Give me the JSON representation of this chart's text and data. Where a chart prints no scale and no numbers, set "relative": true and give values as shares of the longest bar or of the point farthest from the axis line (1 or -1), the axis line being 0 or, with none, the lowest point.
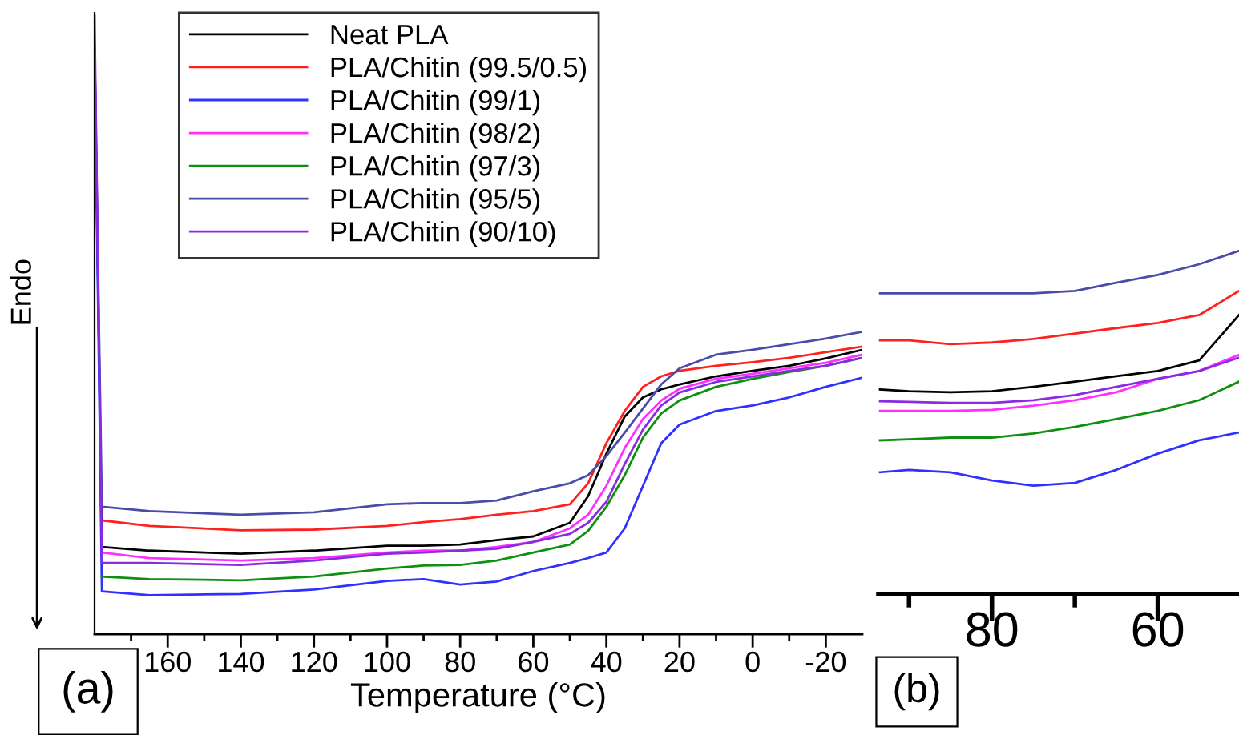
{
  "chart_data": [
    {
      "type": "line",
      "relative": true,
      "xlabel": "Temperature (°C)",
      "ylabel": "Endo",
      "annotations": [
        "(a)"
      ],
      "legend": "top left",
      "tick_labels": "x",
      "grid": false,
      "x": [
        180,
        178,
        165,
        140,
        120,
        100,
        90,
        80,
        70,
        60,
        50,
        45,
        40,
        35,
        30,
        25,
        20,
        10,
        0,
        -10,
        -20,
        -30
      ],
      "xlim": [
        180,
        -30
      ],
      "xticks": [
        {
          "value": 170,
          "label": null
        },
        160,
        {
          "value": 150,
          "label": null
        },
        140,
        {
          "value": 130,
          "label": null
        },
        120,
        {
          "value": 110,
          "label": null
        },
        100,
        {
          "value": 90,
          "label": null
        },
        80,
        {
          "value": 70,
          "label": null
        },
        60,
        {
          "value": 50,
          "label": null
        },
        40,
        {
          "value": 30,
          "label": null
        },
        20,
        {
          "value": 10,
          "label": null
        },
        0,
        {
          "value": -10,
          "label": null
        },
        -20
      ],
      "series": [
        {
          "name": "Neat PLA",
          "color": "#000000",
          "values": [
            0.95,
            0.141,
            0.135,
            0.13,
            0.135,
            0.143,
            0.143,
            0.145,
            0.152,
            0.158,
            0.18,
            0.223,
            0.292,
            0.352,
            0.383,
            0.396,
            0.404,
            0.417,
            0.426,
            0.434,
            0.446,
            0.46
          ]
        },
        {
          "name": "PLA/Chitin (99.5/0.5)",
          "color": "#ff2020",
          "values": [
            null,
            0.184,
            0.175,
            0.168,
            0.169,
            0.175,
            0.181,
            0.186,
            0.193,
            0.199,
            0.21,
            0.244,
            0.309,
            0.361,
            0.4,
            0.417,
            0.426,
            0.434,
            0.44,
            0.447,
            0.456,
            0.465
          ]
        },
        {
          "name": "PLA/Chitin (99/1)",
          "color": "#3030ff",
          "values": [
            0.95,
            0.069,
            0.063,
            0.065,
            0.072,
            0.086,
            0.089,
            0.08,
            0.085,
            0.102,
            0.115,
            0.123,
            0.132,
            0.171,
            0.24,
            0.309,
            0.339,
            0.361,
            0.37,
            0.383,
            0.4,
            0.415
          ]
        },
        {
          "name": "PLA/Chitin (98/2)",
          "color": "#ff30ff",
          "values": [
            null,
            0.132,
            0.123,
            0.119,
            0.123,
            0.132,
            0.135,
            0.135,
            0.141,
            0.149,
            0.171,
            0.193,
            0.24,
            0.301,
            0.348,
            0.378,
            0.397,
            0.413,
            0.421,
            0.43,
            0.439,
            0.452
          ]
        },
        {
          "name": "PLA/Chitin (97/3)",
          "color": "#109010",
          "values": [
            null,
            0.093,
            0.089,
            0.087,
            0.093,
            0.106,
            0.111,
            0.112,
            0.119,
            0.132,
            0.145,
            0.167,
            0.206,
            0.257,
            0.318,
            0.357,
            0.378,
            0.4,
            0.413,
            0.424,
            0.434,
            0.447
          ]
        },
        {
          "name": "PLA/Chitin (95/5)",
          "color": "#4b4ba8",
          "values": [
            0.95,
            0.206,
            0.199,
            0.193,
            0.197,
            0.21,
            0.212,
            0.212,
            0.216,
            0.231,
            0.244,
            0.257,
            0.288,
            0.326,
            0.365,
            0.404,
            0.43,
            0.452,
            0.46,
            0.469,
            0.478,
            0.489
          ]
        },
        {
          "name": "PLA/Chitin (90/10)",
          "color": "#8a2be2",
          "values": [
            1.0,
            0.115,
            0.115,
            0.112,
            0.119,
            0.13,
            0.132,
            0.135,
            0.138,
            0.149,
            0.162,
            0.18,
            0.214,
            0.275,
            0.331,
            0.37,
            0.391,
            0.408,
            0.417,
            0.426,
            0.434,
            0.447
          ]
        }
      ]
    },
    {
      "type": "line",
      "relative": true,
      "annotations": [
        "(b)"
      ],
      "tick_labels": "x",
      "grid": false,
      "x": [
        93.5,
        90,
        85,
        80,
        75,
        70,
        65,
        60,
        55,
        50.2
      ],
      "xlim": [
        93.7,
        50.2
      ],
      "xticks": [
        {
          "value": 90,
          "label": null
        },
        80,
        {
          "value": 70,
          "label": null
        },
        60
      ],
      "series": [
        {
          "color": "#000000",
          "values": [
            0.596,
            0.591,
            0.588,
            0.591,
            0.604,
            0.619,
            0.635,
            0.65,
            0.681,
            0.813
          ]
        },
        {
          "color": "#ff2020",
          "values": [
            0.739,
            0.739,
            0.728,
            0.733,
            0.743,
            0.759,
            0.775,
            0.79,
            0.813,
            0.883
          ]
        },
        {
          "color": "#3030ff",
          "values": [
            0.355,
            0.362,
            0.355,
            0.331,
            0.316,
            0.324,
            0.362,
            0.409,
            0.448,
            0.471
          ]
        },
        {
          "color": "#ff30ff",
          "values": [
            0.534,
            0.534,
            0.534,
            0.537,
            0.549,
            0.565,
            0.588,
            0.627,
            0.65,
            0.697
          ]
        },
        {
          "color": "#109010",
          "values": [
            0.448,
            0.451,
            0.456,
            0.456,
            0.468,
            0.487,
            0.51,
            0.534,
            0.565,
            0.619
          ]
        },
        {
          "color": "#4b4ba8",
          "values": [
            0.876,
            0.876,
            0.876,
            0.876,
            0.876,
            0.883,
            0.907,
            0.93,
            0.961,
            1.0
          ]
        },
        {
          "color": "#8a2be2",
          "values": [
            0.562,
            0.56,
            0.557,
            0.557,
            0.565,
            0.58,
            0.604,
            0.627,
            0.65,
            0.689
          ]
        }
      ]
    }
  ]
}
